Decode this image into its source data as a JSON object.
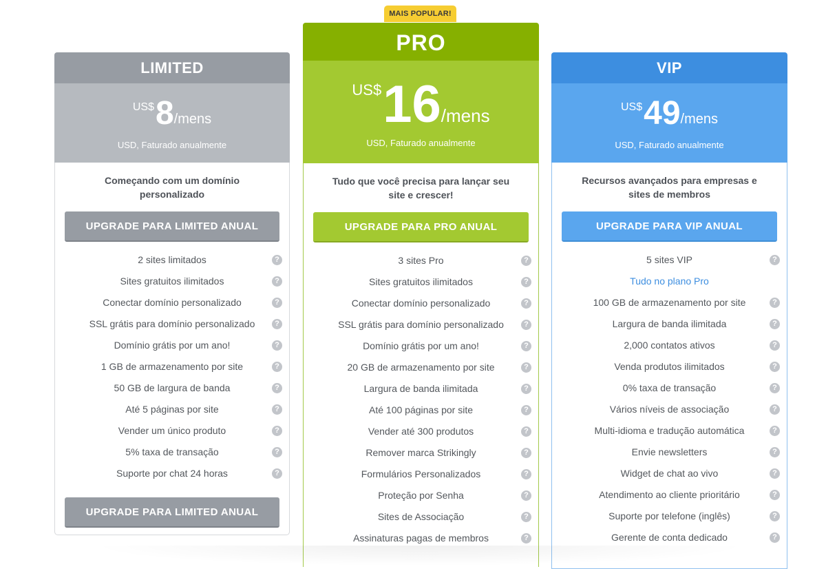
{
  "badge": "MAIS POPULAR!",
  "plans": {
    "limited": {
      "name": "LIMITED",
      "currency": "US$",
      "amount": "8",
      "period": "/mens",
      "billing": "USD, Faturado anualmente",
      "tagline": "Começando com um domínio personalizado",
      "button": "UPGRADE PARA LIMITED ANUAL",
      "features": [
        "2 sites limitados",
        "Sites gratuitos ilimitados",
        "Conectar domínio personalizado",
        "SSL grátis para domínio personalizado",
        "Domínio grátis por um ano!",
        "1 GB de armazenamento por site",
        "50 GB de largura de banda",
        "Até 5 páginas por site",
        "Vender um único produto",
        "5% taxa de transação",
        "Suporte por chat 24 horas"
      ]
    },
    "pro": {
      "name": "PRO",
      "currency": "US$",
      "amount": "16",
      "period": "/mens",
      "billing": "USD, Faturado anualmente",
      "tagline": "Tudo que você precisa para lançar seu site e crescer!",
      "button": "UPGRADE PARA PRO ANUAL",
      "features": [
        "3 sites Pro",
        "Sites gratuitos ilimitados",
        "Conectar domínio personalizado",
        "SSL grátis para domínio personalizado",
        "Domínio grátis por um ano!",
        "20 GB de armazenamento por site",
        "Largura de banda ilimitada",
        "Até 100 páginas por site",
        "Vender até 300 produtos",
        "Remover marca Strikingly",
        "Formulários Personalizados",
        "Proteção por Senha",
        "Sites de Associação",
        "Assinaturas pagas de membros"
      ]
    },
    "vip": {
      "name": "VIP",
      "currency": "US$",
      "amount": "49",
      "period": "/mens",
      "billing": "USD, Faturado anualmente",
      "tagline": "Recursos avançados para empresas e sites de membros",
      "button": "UPGRADE PARA VIP ANUAL",
      "features": [
        "5 sites VIP",
        "Tudo no plano Pro",
        "100 GB de armazenamento por site",
        "Largura de banda ilimitada",
        "2,000 contatos ativos",
        "Venda produtos ilimitados",
        "0% taxa de transação",
        "Vários níveis de associação",
        "Multi-idioma e tradução automática",
        "Envie newsletters",
        "Widget de chat ao vivo",
        "Atendimento ao cliente prioritário",
        "Suporte por telefone (inglês)",
        "Gerente de conta dedicado"
      ]
    }
  },
  "help_icon_glyph": "?",
  "colors": {
    "limited_accent": "#979ca3",
    "pro_accent": "#86b000",
    "vip_accent": "#3d8ee0",
    "badge": "#f6cd32",
    "link": "#3d8ee0"
  }
}
